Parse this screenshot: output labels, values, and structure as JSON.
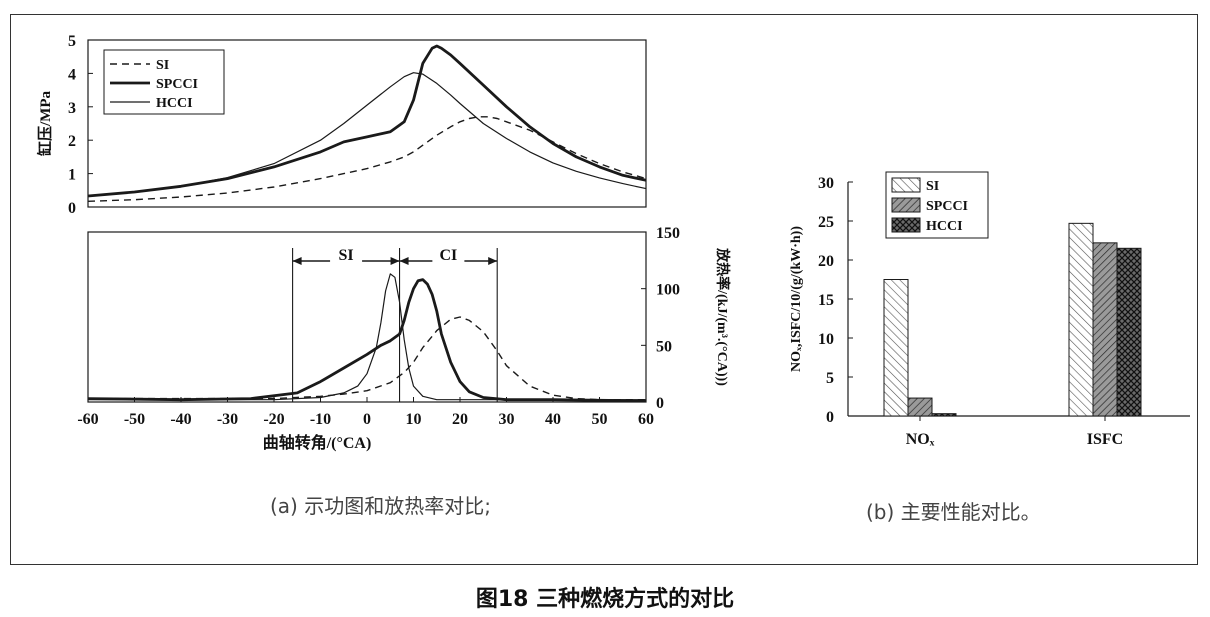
{
  "figure": {
    "title": "图18 三种燃烧方式的对比",
    "caption_a": "(a) 示功图和放热率对比;",
    "caption_b": "(b) 主要性能对比。"
  },
  "colors": {
    "line": "#1a1a1a",
    "frame": "#333333"
  },
  "chart_data": [
    {
      "type": "line",
      "title": "",
      "xlabel": "",
      "ylabel": "缸压/MPa",
      "xlim": [
        -60,
        60
      ],
      "ylim": [
        0,
        5
      ],
      "yticks": [
        "0",
        "1",
        "2",
        "3",
        "4",
        "5"
      ],
      "legend": "top-left",
      "series": [
        {
          "name": "SI",
          "style": "dashed",
          "x": [
            -60,
            -50,
            -40,
            -30,
            -20,
            -10,
            -5,
            0,
            5,
            8,
            10,
            12,
            15,
            18,
            20,
            22,
            24,
            26,
            28,
            30,
            35,
            40,
            45,
            50,
            55,
            60
          ],
          "y": [
            0.17,
            0.22,
            0.3,
            0.42,
            0.6,
            0.85,
            1.0,
            1.15,
            1.35,
            1.5,
            1.65,
            1.85,
            2.15,
            2.4,
            2.55,
            2.65,
            2.7,
            2.7,
            2.65,
            2.55,
            2.3,
            1.95,
            1.6,
            1.3,
            1.05,
            0.85
          ]
        },
        {
          "name": "SPCCI",
          "style": "bold",
          "x": [
            -60,
            -50,
            -40,
            -30,
            -20,
            -10,
            -5,
            0,
            5,
            8,
            10,
            12,
            14,
            15,
            16,
            18,
            20,
            25,
            30,
            35,
            40,
            45,
            50,
            55,
            60
          ],
          "y": [
            0.33,
            0.45,
            0.62,
            0.85,
            1.2,
            1.65,
            1.95,
            2.1,
            2.25,
            2.55,
            3.2,
            4.3,
            4.75,
            4.82,
            4.75,
            4.55,
            4.3,
            3.65,
            3.0,
            2.4,
            1.9,
            1.5,
            1.2,
            0.95,
            0.8
          ]
        },
        {
          "name": "HCCI",
          "style": "thin",
          "x": [
            -60,
            -50,
            -40,
            -30,
            -20,
            -10,
            -5,
            0,
            5,
            8,
            10,
            12,
            15,
            18,
            20,
            25,
            30,
            35,
            40,
            45,
            50,
            55,
            60
          ],
          "y": [
            0.33,
            0.45,
            0.62,
            0.88,
            1.3,
            2.0,
            2.5,
            3.05,
            3.6,
            3.9,
            4.02,
            3.98,
            3.7,
            3.35,
            3.1,
            2.5,
            2.05,
            1.65,
            1.32,
            1.07,
            0.87,
            0.7,
            0.55
          ]
        }
      ]
    },
    {
      "type": "line",
      "title": "",
      "xlabel": "曲轴转角/(°CA)",
      "ylabel": "放热率/(kJ/(m³.(°CA)))",
      "xlim": [
        -60,
        60
      ],
      "ylim": [
        0,
        150
      ],
      "xticks": [
        "-60",
        "-50",
        "-40",
        "-30",
        "-20",
        "-10",
        "0",
        "10",
        "20",
        "30",
        "40",
        "50",
        "60"
      ],
      "yticks": [
        "0",
        "50",
        "100",
        "150"
      ],
      "annotations": [
        {
          "text": "SI",
          "from": -16,
          "to": 7
        },
        {
          "text": "CI",
          "from": 7,
          "to": 28
        }
      ],
      "series": [
        {
          "name": "SI",
          "style": "dashed",
          "x": [
            -60,
            -20,
            -10,
            -5,
            0,
            5,
            8,
            10,
            12,
            15,
            18,
            20,
            22,
            25,
            28,
            30,
            35,
            40,
            45,
            50,
            60
          ],
          "y": [
            3,
            3,
            5,
            7,
            10,
            17,
            26,
            35,
            48,
            63,
            73,
            75,
            72,
            62,
            45,
            32,
            14,
            6,
            3,
            2,
            2
          ]
        },
        {
          "name": "SPCCI",
          "style": "bold",
          "x": [
            -60,
            -40,
            -25,
            -15,
            -10,
            -5,
            0,
            3,
            5,
            7,
            8,
            9,
            10,
            11,
            12,
            13,
            14,
            15,
            16,
            18,
            20,
            22,
            25,
            30,
            40,
            60
          ],
          "y": [
            3,
            2,
            3,
            8,
            18,
            30,
            42,
            50,
            54,
            60,
            72,
            88,
            100,
            107,
            108,
            104,
            95,
            80,
            60,
            35,
            18,
            9,
            4,
            2,
            2,
            1
          ]
        },
        {
          "name": "HCCI",
          "style": "thin",
          "x": [
            -60,
            -20,
            -10,
            -5,
            -2,
            0,
            2,
            3,
            4,
            5,
            6,
            7,
            8,
            9,
            10,
            12,
            15,
            20,
            60
          ],
          "y": [
            2,
            2,
            4,
            8,
            14,
            25,
            48,
            70,
            98,
            113,
            110,
            88,
            55,
            30,
            14,
            5,
            2,
            2,
            2
          ]
        }
      ]
    },
    {
      "type": "bar",
      "title": "",
      "xlabel": "",
      "ylabel": "NOₓ,ISFC/10/(g/(kW·h))",
      "categories": [
        "NOₓ",
        "ISFC"
      ],
      "ylim": [
        0,
        30
      ],
      "yticks": [
        "0",
        "5",
        "10",
        "15",
        "20",
        "25",
        "30"
      ],
      "legend": "top-left",
      "series": [
        {
          "name": "SI",
          "pattern": "light-hatch",
          "values": [
            17.5,
            24.7
          ]
        },
        {
          "name": "SPCCI",
          "pattern": "gray-hatch",
          "values": [
            2.3,
            22.2
          ]
        },
        {
          "name": "HCCI",
          "pattern": "dark-cross",
          "values": [
            0.3,
            21.5
          ]
        }
      ]
    }
  ]
}
